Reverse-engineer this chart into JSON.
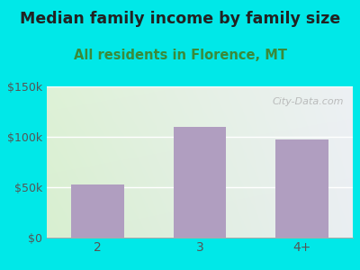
{
  "title": "Median family income by family size",
  "subtitle": "All residents in Florence, MT",
  "categories": [
    "2",
    "3",
    "4+"
  ],
  "values": [
    53000,
    110000,
    97000
  ],
  "bar_color": "#b09ec0",
  "title_fontsize": 12.5,
  "subtitle_fontsize": 10.5,
  "subtitle_color": "#3a8a3a",
  "title_color": "#222222",
  "background_outer": "#00e8e8",
  "background_inner_topleft": "#ddf0d8",
  "background_inner_topright": "#eef4f8",
  "background_inner_bottom": "#f8fff8",
  "ylim": [
    0,
    150000
  ],
  "yticks": [
    0,
    50000,
    100000,
    150000
  ],
  "ytick_labels": [
    "$0",
    "$50k",
    "$100k",
    "$150k"
  ],
  "watermark": "City-Data.com"
}
